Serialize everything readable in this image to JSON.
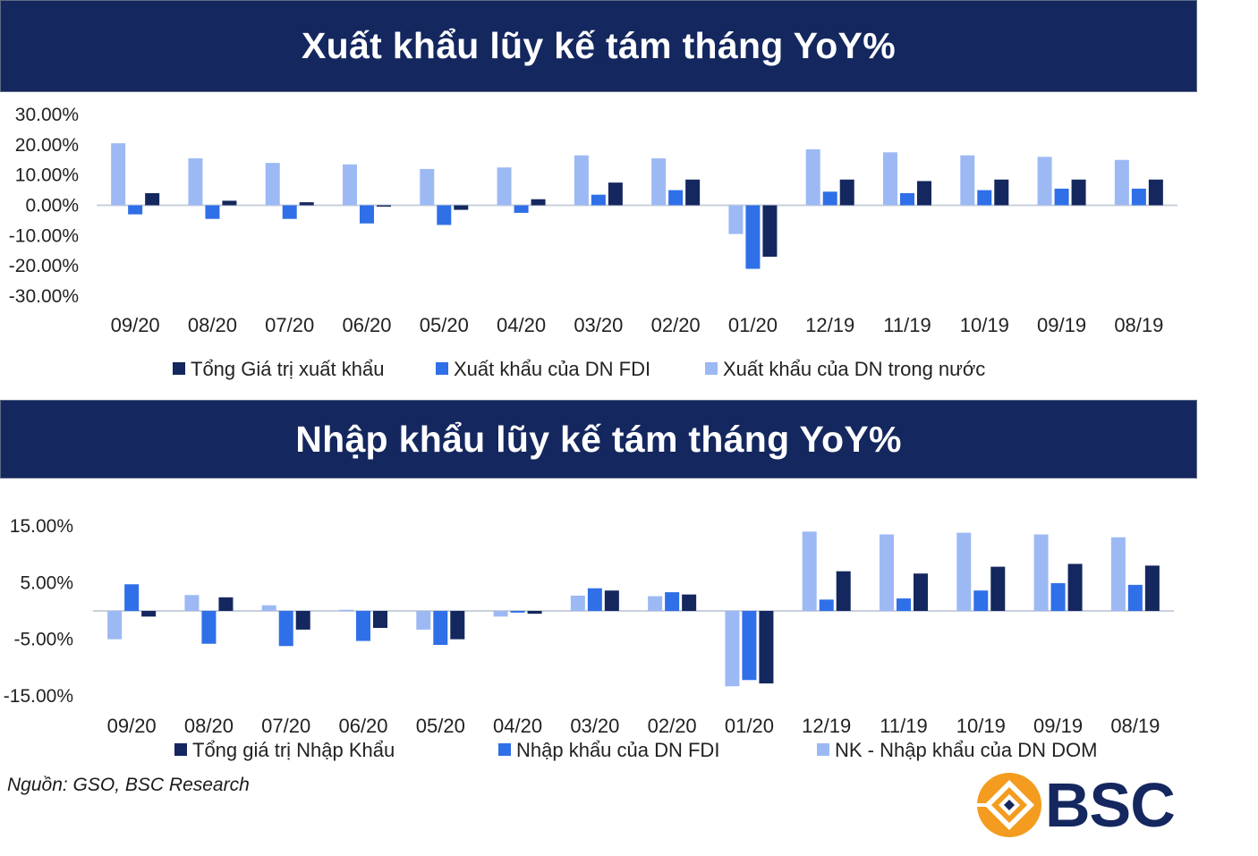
{
  "colors": {
    "banner": "#14275e",
    "total": "#14275e",
    "fdi": "#2f6fe8",
    "dom": "#9db9f4",
    "axis": "#c9d0dc"
  },
  "source": "Nguồn: GSO, BSC Research",
  "logo": {
    "text": "BSC",
    "icon": "bsc-diamond-logo-icon",
    "colors": [
      "#f39c1f",
      "#14275e"
    ]
  },
  "chart_data": [
    {
      "type": "bar",
      "title": "Xuất khẩu lũy kế tám tháng YoY%",
      "categories": [
        "09/20",
        "08/20",
        "07/20",
        "06/20",
        "05/20",
        "04/20",
        "03/20",
        "02/20",
        "01/20",
        "12/19",
        "11/19",
        "10/19",
        "09/19",
        "08/19"
      ],
      "yticks": [
        "30.00%",
        "20.00%",
        "10.00%",
        "0.00%",
        "-10.00%",
        "-20.00%",
        "-30.00%"
      ],
      "ylim": [
        -30,
        30
      ],
      "series": [
        {
          "name": "Xuất khẩu của DN trong nước",
          "key": "dom",
          "values": [
            20.5,
            15.5,
            14.0,
            13.5,
            12.0,
            12.5,
            16.5,
            15.5,
            -9.5,
            18.5,
            17.5,
            16.5,
            16.0,
            15.0
          ]
        },
        {
          "name": "Xuất khẩu của DN FDI",
          "key": "fdi",
          "values": [
            -3.0,
            -4.5,
            -4.5,
            -6.0,
            -6.5,
            -2.5,
            3.5,
            5.0,
            -21.0,
            4.5,
            4.0,
            5.0,
            5.5,
            5.5
          ]
        },
        {
          "name": "Tổng Giá trị xuất khẩu",
          "key": "total",
          "values": [
            4.0,
            1.5,
            1.0,
            -0.2,
            -1.5,
            2.0,
            7.5,
            8.5,
            -17.0,
            8.5,
            8.0,
            8.5,
            8.5,
            8.5
          ]
        }
      ],
      "legend": [
        "Tổng Giá trị xuất khẩu",
        "Xuất khẩu của DN FDI",
        "Xuất khẩu của DN trong nước"
      ]
    },
    {
      "type": "bar",
      "title": "Nhập khẩu lũy kế  tám tháng YoY%",
      "categories": [
        "09/20",
        "08/20",
        "07/20",
        "06/20",
        "05/20",
        "04/20",
        "03/20",
        "02/20",
        "01/20",
        "12/19",
        "11/19",
        "10/19",
        "09/19",
        "08/19"
      ],
      "yticks": [
        "15.00%",
        "5.00%",
        "-5.00%",
        "-15.00%"
      ],
      "ylim": [
        -15,
        15
      ],
      "series": [
        {
          "name": "NK - Nhập khẩu của DN DOM",
          "key": "dom",
          "values": [
            -5.0,
            2.8,
            1.0,
            0.2,
            -3.3,
            -1.0,
            2.7,
            2.6,
            -13.3,
            14.0,
            13.5,
            13.8,
            13.5,
            13.0
          ]
        },
        {
          "name": "Nhập khẩu của DN FDI",
          "key": "fdi",
          "values": [
            4.7,
            -5.8,
            -6.2,
            -5.3,
            -6.0,
            -0.3,
            4.0,
            3.3,
            -12.2,
            2.0,
            2.2,
            3.6,
            4.9,
            4.6
          ]
        },
        {
          "name": "Tổng giá trị Nhập Khẩu",
          "key": "total",
          "values": [
            -1.0,
            2.4,
            -3.3,
            -3.0,
            -5.0,
            -0.5,
            3.6,
            2.9,
            -12.8,
            7.0,
            6.6,
            7.8,
            8.3,
            8.0
          ]
        }
      ],
      "legend": [
        "Tổng giá trị Nhập Khẩu",
        "Nhập khẩu của DN FDI",
        "NK - Nhập khẩu của DN DOM"
      ]
    }
  ]
}
